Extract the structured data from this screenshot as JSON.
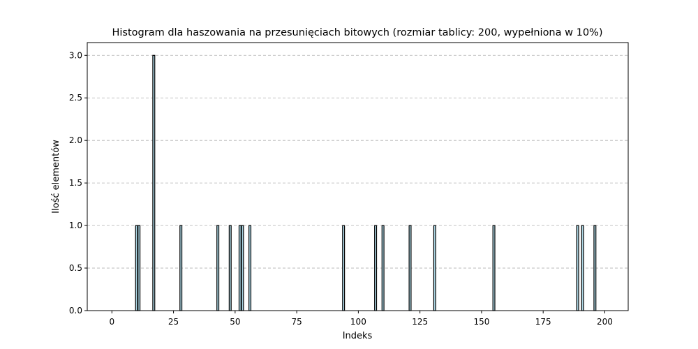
{
  "chart_data": {
    "type": "bar",
    "title": "Histogram dla haszowania na przesunięciach bitowych (rozmiar tablicy: 200, wypełniona w 10%)",
    "xlabel": "Indeks",
    "ylabel": "Ilość elementów",
    "xlim": [
      -10,
      209.5
    ],
    "ylim": [
      0,
      3.15
    ],
    "xticks": [
      0,
      25,
      50,
      75,
      100,
      125,
      150,
      175,
      200
    ],
    "yticks": [
      0.0,
      0.5,
      1.0,
      1.5,
      2.0,
      2.5,
      3.0
    ],
    "grid": "y-dashed",
    "bar_color": "#add8e6",
    "edge_color": "#000000",
    "x": [
      10,
      11,
      17,
      28,
      43,
      48,
      52,
      53,
      56,
      94,
      107,
      110,
      121,
      131,
      155,
      189,
      191,
      196
    ],
    "values": [
      1,
      1,
      3,
      1,
      1,
      1,
      1,
      1,
      1,
      1,
      1,
      1,
      1,
      1,
      1,
      1,
      1,
      1
    ]
  }
}
